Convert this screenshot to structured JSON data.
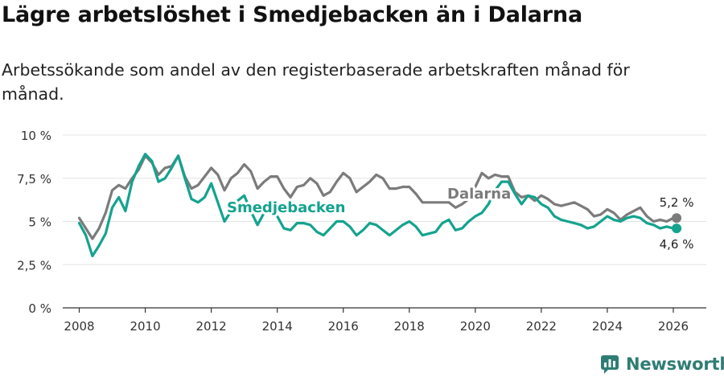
{
  "title": "Lägre arbetslöshet i Smedjebacken än i Dalarna",
  "subtitle": "Arbetssökande som andel av den registerbaserade arbetskraften månad för månad.",
  "brand": {
    "name": "Newsworthy",
    "icon": "newsworthy-logo-icon"
  },
  "colors": {
    "smedjebacken": "#14a38f",
    "dalarna": "#7b7b7b",
    "grid": "#e3e3e3",
    "axis": "#333333"
  },
  "chart_data": {
    "type": "line",
    "title": "Lägre arbetslöshet i Smedjebacken än i Dalarna",
    "xlabel": "",
    "ylabel": "",
    "xlim": [
      2007.5,
      2027.0
    ],
    "ylim": [
      0,
      10
    ],
    "y_ticks": [
      0,
      2.5,
      5,
      7.5,
      10
    ],
    "y_tick_labels": [
      "0 %",
      "2,5 %",
      "5 %",
      "7,5 %",
      "10 %"
    ],
    "x_ticks": [
      2008,
      2010,
      2012,
      2014,
      2016,
      2018,
      2020,
      2022,
      2024,
      2026
    ],
    "x_tick_labels": [
      "2008",
      "2010",
      "2012",
      "2014",
      "2016",
      "2018",
      "2020",
      "2022",
      "2024",
      "2026"
    ],
    "grid": true,
    "series": [
      {
        "name": "Dalarna",
        "x": [
          2008.0,
          2008.2,
          2008.4,
          2008.6,
          2008.8,
          2009.0,
          2009.2,
          2009.4,
          2009.6,
          2009.8,
          2010.0,
          2010.2,
          2010.4,
          2010.6,
          2010.8,
          2011.0,
          2011.2,
          2011.4,
          2011.6,
          2011.8,
          2012.0,
          2012.2,
          2012.4,
          2012.6,
          2012.8,
          2013.0,
          2013.2,
          2013.4,
          2013.6,
          2013.8,
          2014.0,
          2014.2,
          2014.4,
          2014.6,
          2014.8,
          2015.0,
          2015.2,
          2015.4,
          2015.6,
          2015.8,
          2016.0,
          2016.2,
          2016.4,
          2016.6,
          2016.8,
          2017.0,
          2017.2,
          2017.4,
          2017.6,
          2017.8,
          2018.0,
          2018.2,
          2018.4,
          2018.6,
          2018.8,
          2019.0,
          2019.2,
          2019.4,
          2019.6,
          2019.8,
          2020.0,
          2020.2,
          2020.4,
          2020.6,
          2020.8,
          2021.0,
          2021.2,
          2021.4,
          2021.6,
          2021.8,
          2022.0,
          2022.2,
          2022.4,
          2022.6,
          2022.8,
          2023.0,
          2023.2,
          2023.4,
          2023.6,
          2023.8,
          2024.0,
          2024.2,
          2024.4,
          2024.6,
          2024.8,
          2025.0,
          2025.2,
          2025.4,
          2025.6,
          2025.8,
          2026.0,
          2026.1
        ],
        "values": [
          5.2,
          4.6,
          4.0,
          4.6,
          5.5,
          6.8,
          7.1,
          6.9,
          7.5,
          8.0,
          8.8,
          8.4,
          7.7,
          8.1,
          8.2,
          8.8,
          7.6,
          6.9,
          7.1,
          7.6,
          8.1,
          7.7,
          6.8,
          7.5,
          7.8,
          8.3,
          7.9,
          6.9,
          7.3,
          7.6,
          7.6,
          6.9,
          6.4,
          7.0,
          7.1,
          7.5,
          7.2,
          6.5,
          6.7,
          7.3,
          7.8,
          7.5,
          6.7,
          7.0,
          7.3,
          7.7,
          7.5,
          6.9,
          6.9,
          7.0,
          7.0,
          6.6,
          6.1,
          6.1,
          6.1,
          6.1,
          6.1,
          5.8,
          6.0,
          6.3,
          7.0,
          7.8,
          7.5,
          7.7,
          7.6,
          7.6,
          6.7,
          6.4,
          6.5,
          6.2,
          6.5,
          6.3,
          6.0,
          5.9,
          6.0,
          6.1,
          5.9,
          5.7,
          5.3,
          5.4,
          5.7,
          5.5,
          5.1,
          5.4,
          5.6,
          5.8,
          5.3,
          5.0,
          5.1,
          5.0,
          5.2,
          5.2
        ]
      },
      {
        "name": "Smedjebacken",
        "x": [
          2008.0,
          2008.2,
          2008.4,
          2008.6,
          2008.8,
          2009.0,
          2009.2,
          2009.4,
          2009.6,
          2009.8,
          2010.0,
          2010.2,
          2010.4,
          2010.6,
          2010.8,
          2011.0,
          2011.2,
          2011.4,
          2011.6,
          2011.8,
          2012.0,
          2012.2,
          2012.4,
          2012.6,
          2012.8,
          2013.0,
          2013.2,
          2013.4,
          2013.6,
          2013.8,
          2014.0,
          2014.2,
          2014.4,
          2014.6,
          2014.8,
          2015.0,
          2015.2,
          2015.4,
          2015.6,
          2015.8,
          2016.0,
          2016.2,
          2016.4,
          2016.6,
          2016.8,
          2017.0,
          2017.2,
          2017.4,
          2017.6,
          2017.8,
          2018.0,
          2018.2,
          2018.4,
          2018.6,
          2018.8,
          2019.0,
          2019.2,
          2019.4,
          2019.6,
          2019.8,
          2020.0,
          2020.2,
          2020.4,
          2020.6,
          2020.8,
          2021.0,
          2021.2,
          2021.4,
          2021.6,
          2021.8,
          2022.0,
          2022.2,
          2022.4,
          2022.6,
          2022.8,
          2023.0,
          2023.2,
          2023.4,
          2023.6,
          2023.8,
          2024.0,
          2024.2,
          2024.4,
          2024.6,
          2024.8,
          2025.0,
          2025.2,
          2025.4,
          2025.6,
          2025.8,
          2026.0,
          2026.1
        ],
        "values": [
          4.9,
          4.2,
          3.0,
          3.6,
          4.3,
          5.8,
          6.4,
          5.6,
          7.3,
          8.2,
          8.9,
          8.5,
          7.3,
          7.5,
          8.1,
          8.8,
          7.5,
          6.3,
          6.1,
          6.4,
          7.2,
          6.1,
          5.0,
          5.6,
          6.2,
          6.5,
          5.6,
          4.8,
          5.5,
          5.7,
          5.3,
          4.6,
          4.5,
          4.9,
          4.9,
          4.8,
          4.4,
          4.2,
          4.6,
          5.0,
          5.0,
          4.7,
          4.2,
          4.5,
          4.9,
          4.8,
          4.5,
          4.2,
          4.5,
          4.8,
          5.0,
          4.7,
          4.2,
          4.3,
          4.4,
          4.9,
          5.1,
          4.5,
          4.6,
          5.0,
          5.3,
          5.5,
          6.0,
          6.8,
          7.3,
          7.3,
          6.6,
          6.0,
          6.5,
          6.4,
          6.0,
          5.8,
          5.3,
          5.1,
          5.0,
          4.9,
          4.8,
          4.6,
          4.7,
          5.0,
          5.3,
          5.1,
          5.0,
          5.2,
          5.3,
          5.2,
          4.9,
          4.8,
          4.6,
          4.7,
          4.6,
          4.6
        ]
      }
    ],
    "annotations": [
      {
        "series": "Dalarna",
        "text": "5,2 %"
      },
      {
        "series": "Smedjebacken",
        "text": "4,6 %"
      }
    ]
  }
}
